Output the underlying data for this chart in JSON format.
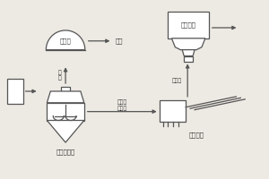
{
  "bg_color": "#ede9e3",
  "line_color": "#555555",
  "text_color": "#333333",
  "labels": {
    "gas_tank": "储气罐",
    "methane": "甲烷",
    "biogas": "沼\n气",
    "fermenter": "厌氧发酵罐",
    "mixed_liquid": "共发酵\n混合液",
    "dewater": "污泥脱水",
    "dewater_liquid": "脱水液",
    "phosphorus": "氨磷回收"
  },
  "figsize": [
    3.0,
    2.0
  ],
  "dpi": 100
}
